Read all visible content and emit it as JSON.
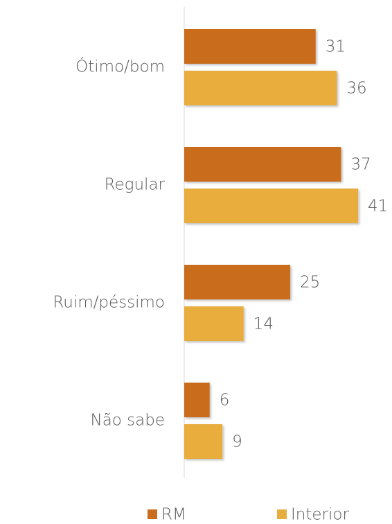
{
  "chart_data": {
    "type": "hbar",
    "categories": [
      "Ótimo/bom",
      "Regular",
      "Ruim/péssimo",
      "Não sabe"
    ],
    "series": [
      {
        "name": "RM",
        "color": "#c96d1e",
        "values": [
          31,
          37,
          25,
          6
        ]
      },
      {
        "name": "Interior",
        "color": "#e8ad3c",
        "values": [
          36,
          41,
          14,
          9
        ]
      }
    ],
    "xlim": [
      0,
      49
    ],
    "legend": "bottom"
  }
}
